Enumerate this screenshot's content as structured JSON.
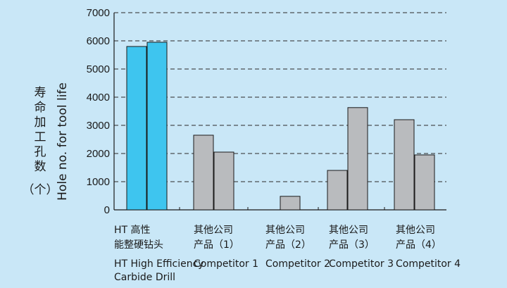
{
  "chart_data": {
    "type": "bar",
    "ylabel_cn_lines": [
      "寿命加工孔数",
      "（个）"
    ],
    "ylabel_en": "Hole no. for tool life",
    "ylim": [
      0,
      7000
    ],
    "yticks": [
      0,
      1000,
      2000,
      3000,
      4000,
      5000,
      6000,
      7000
    ],
    "grid": "dashed-horizontal",
    "categories": [
      {
        "cn1": "HT 高性",
        "cn2": "能整硬钻头",
        "en1": "HT High Efficiency",
        "en2": "Carbide Drill",
        "values": [
          5800,
          5950
        ],
        "color": "#3ec5ef"
      },
      {
        "cn1": "其他公司",
        "cn2": "产品（1）",
        "en1": "Competitor 1",
        "en2": "",
        "values": [
          2650,
          2050
        ],
        "color": "#b9bbbe"
      },
      {
        "cn1": "其他公司",
        "cn2": "产品（2）",
        "en1": "Competitor 2",
        "en2": "",
        "values": [
          null,
          480
        ],
        "color": "#b9bbbe"
      },
      {
        "cn1": "其他公司",
        "cn2": "产品（3）",
        "en1": "Competitor 3",
        "en2": "",
        "values": [
          1400,
          3630
        ],
        "color": "#b9bbbe"
      },
      {
        "cn1": "其他公司",
        "cn2": "产品（4）",
        "en1": "Competitor 4",
        "en2": "",
        "values": [
          3200,
          1950
        ],
        "color": "#b9bbbe"
      }
    ]
  }
}
